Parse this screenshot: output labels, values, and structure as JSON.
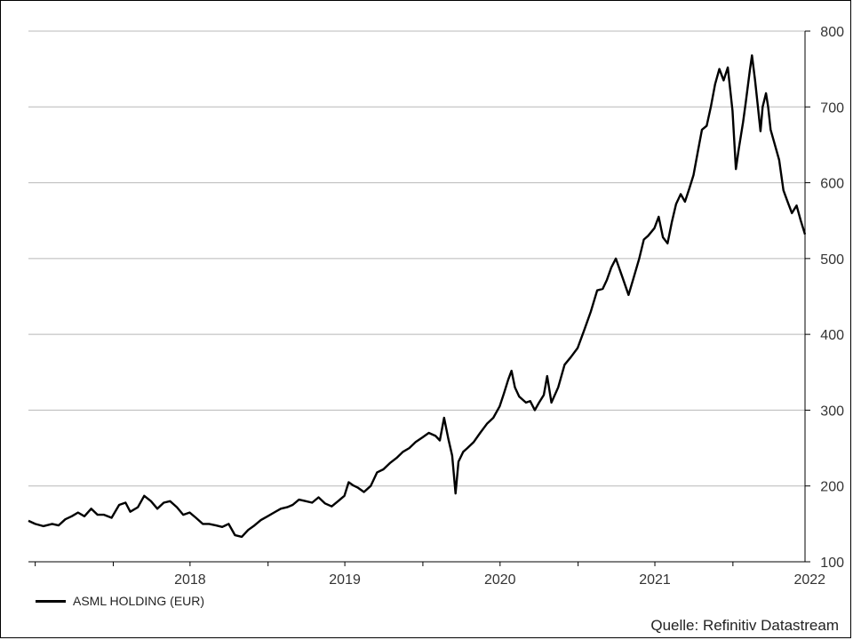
{
  "chart_data": {
    "type": "line",
    "title": "",
    "xlabel": "",
    "ylabel": "",
    "ylim": [
      100,
      800
    ],
    "yticks": [
      100,
      200,
      300,
      400,
      500,
      600,
      700,
      800
    ],
    "y_axis_side": "right",
    "grid": "horizontal",
    "x_tick_labels": [
      "2018",
      "2019",
      "2020",
      "2021",
      "2022"
    ],
    "xlim": [
      "2017-06-15",
      "2022-06-20"
    ],
    "legend_placement": "bottom-left",
    "series": [
      {
        "name": "ASML HOLDING (EUR)",
        "color": "#000000",
        "points": [
          [
            "2017-06-15",
            154
          ],
          [
            "2017-07-01",
            150
          ],
          [
            "2017-07-20",
            147
          ],
          [
            "2017-08-10",
            150
          ],
          [
            "2017-08-25",
            148
          ],
          [
            "2017-09-10",
            156
          ],
          [
            "2017-09-25",
            160
          ],
          [
            "2017-10-10",
            165
          ],
          [
            "2017-10-25",
            160
          ],
          [
            "2017-11-10",
            170
          ],
          [
            "2017-11-25",
            162
          ],
          [
            "2017-12-10",
            162
          ],
          [
            "2017-12-28",
            158
          ],
          [
            "2018-01-15",
            175
          ],
          [
            "2018-01-30",
            178
          ],
          [
            "2018-02-10",
            166
          ],
          [
            "2018-02-28",
            172
          ],
          [
            "2018-03-15",
            187
          ],
          [
            "2018-03-31",
            180
          ],
          [
            "2018-04-15",
            170
          ],
          [
            "2018-04-30",
            178
          ],
          [
            "2018-05-15",
            180
          ],
          [
            "2018-05-31",
            172
          ],
          [
            "2018-06-15",
            162
          ],
          [
            "2018-06-30",
            165
          ],
          [
            "2018-07-15",
            158
          ],
          [
            "2018-07-31",
            150
          ],
          [
            "2018-08-15",
            150
          ],
          [
            "2018-08-31",
            148
          ],
          [
            "2018-09-15",
            146
          ],
          [
            "2018-09-30",
            150
          ],
          [
            "2018-10-15",
            135
          ],
          [
            "2018-10-31",
            133
          ],
          [
            "2018-11-15",
            142
          ],
          [
            "2018-11-30",
            148
          ],
          [
            "2018-12-15",
            155
          ],
          [
            "2018-12-31",
            160
          ],
          [
            "2019-01-15",
            165
          ],
          [
            "2019-01-31",
            170
          ],
          [
            "2019-02-15",
            172
          ],
          [
            "2019-02-28",
            175
          ],
          [
            "2019-03-15",
            182
          ],
          [
            "2019-03-31",
            180
          ],
          [
            "2019-04-15",
            178
          ],
          [
            "2019-04-30",
            185
          ],
          [
            "2019-05-15",
            177
          ],
          [
            "2019-05-31",
            173
          ],
          [
            "2019-06-15",
            180
          ],
          [
            "2019-06-30",
            187
          ],
          [
            "2019-07-10",
            205
          ],
          [
            "2019-07-20",
            201
          ],
          [
            "2019-07-31",
            198
          ],
          [
            "2019-08-15",
            192
          ],
          [
            "2019-08-31",
            200
          ],
          [
            "2019-09-15",
            218
          ],
          [
            "2019-09-30",
            222
          ],
          [
            "2019-10-15",
            230
          ],
          [
            "2019-10-31",
            237
          ],
          [
            "2019-11-15",
            245
          ],
          [
            "2019-11-30",
            250
          ],
          [
            "2019-12-15",
            258
          ],
          [
            "2019-12-31",
            264
          ],
          [
            "2020-01-15",
            270
          ],
          [
            "2020-01-31",
            266
          ],
          [
            "2020-02-10",
            260
          ],
          [
            "2020-02-20",
            290
          ],
          [
            "2020-03-01",
            262
          ],
          [
            "2020-03-10",
            240
          ],
          [
            "2020-03-18",
            190
          ],
          [
            "2020-03-25",
            232
          ],
          [
            "2020-04-05",
            245
          ],
          [
            "2020-04-15",
            250
          ],
          [
            "2020-04-30",
            258
          ],
          [
            "2020-05-15",
            270
          ],
          [
            "2020-05-31",
            282
          ],
          [
            "2020-06-15",
            290
          ],
          [
            "2020-06-30",
            305
          ],
          [
            "2020-07-10",
            322
          ],
          [
            "2020-07-20",
            340
          ],
          [
            "2020-07-28",
            352
          ],
          [
            "2020-08-05",
            330
          ],
          [
            "2020-08-15",
            318
          ],
          [
            "2020-08-31",
            310
          ],
          [
            "2020-09-10",
            312
          ],
          [
            "2020-09-21",
            300
          ],
          [
            "2020-10-01",
            310
          ],
          [
            "2020-10-12",
            320
          ],
          [
            "2020-10-20",
            345
          ],
          [
            "2020-10-30",
            310
          ],
          [
            "2020-11-15",
            330
          ],
          [
            "2020-11-30",
            360
          ],
          [
            "2020-12-15",
            370
          ],
          [
            "2020-12-31",
            382
          ],
          [
            "2021-01-15",
            405
          ],
          [
            "2021-01-31",
            430
          ],
          [
            "2021-02-15",
            458
          ],
          [
            "2021-02-28",
            460
          ],
          [
            "2021-03-10",
            472
          ],
          [
            "2021-03-20",
            488
          ],
          [
            "2021-03-31",
            500
          ],
          [
            "2021-04-15",
            476
          ],
          [
            "2021-04-30",
            452
          ],
          [
            "2021-05-12",
            475
          ],
          [
            "2021-05-25",
            500
          ],
          [
            "2021-06-05",
            525
          ],
          [
            "2021-06-15",
            530
          ],
          [
            "2021-06-30",
            540
          ],
          [
            "2021-07-10",
            555
          ],
          [
            "2021-07-20",
            528
          ],
          [
            "2021-07-31",
            520
          ],
          [
            "2021-08-10",
            548
          ],
          [
            "2021-08-20",
            572
          ],
          [
            "2021-08-31",
            585
          ],
          [
            "2021-09-10",
            575
          ],
          [
            "2021-09-20",
            592
          ],
          [
            "2021-09-30",
            610
          ],
          [
            "2021-10-10",
            640
          ],
          [
            "2021-10-20",
            670
          ],
          [
            "2021-10-31",
            675
          ],
          [
            "2021-11-10",
            700
          ],
          [
            "2021-11-20",
            730
          ],
          [
            "2021-11-30",
            750
          ],
          [
            "2021-12-10",
            735
          ],
          [
            "2021-12-20",
            752
          ],
          [
            "2021-12-31",
            695
          ],
          [
            "2022-01-08",
            618
          ],
          [
            "2022-01-15",
            645
          ],
          [
            "2022-01-25",
            680
          ],
          [
            "2022-01-31",
            705
          ],
          [
            "2022-02-10",
            748
          ],
          [
            "2022-02-15",
            768
          ],
          [
            "2022-02-22",
            736
          ],
          [
            "2022-03-01",
            700
          ],
          [
            "2022-03-07",
            668
          ],
          [
            "2022-03-12",
            700
          ],
          [
            "2022-03-20",
            718
          ],
          [
            "2022-03-25",
            700
          ],
          [
            "2022-03-31",
            670
          ],
          [
            "2022-04-10",
            650
          ],
          [
            "2022-04-20",
            630
          ],
          [
            "2022-04-30",
            590
          ],
          [
            "2022-05-10",
            575
          ],
          [
            "2022-05-20",
            560
          ],
          [
            "2022-05-31",
            570
          ],
          [
            "2022-06-10",
            550
          ],
          [
            "2022-06-20",
            532
          ]
        ]
      }
    ]
  },
  "legend": {
    "label": "ASML HOLDING (EUR)"
  },
  "source": {
    "text": "Quelle: Refinitiv Datastream"
  }
}
